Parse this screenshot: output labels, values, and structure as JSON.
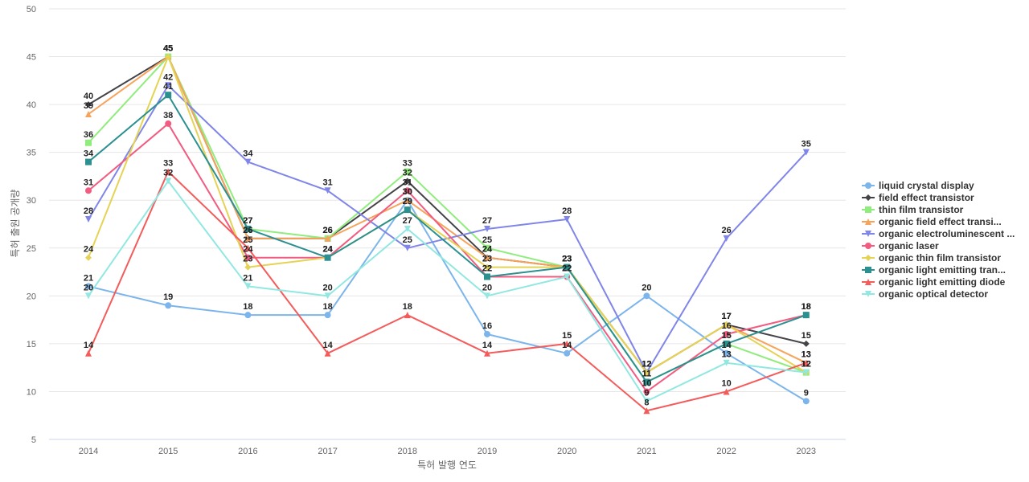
{
  "chart_data": {
    "type": "line",
    "xlabel": "특허 발행 연도",
    "ylabel": "특허 출원 공개량",
    "ylim": [
      5,
      50
    ],
    "yticks": [
      5,
      10,
      15,
      20,
      25,
      30,
      35,
      40,
      45,
      50
    ],
    "grid": true,
    "legend_position": "right",
    "categories": [
      "2014",
      "2015",
      "2016",
      "2017",
      "2018",
      "2019",
      "2020",
      "2021",
      "2022",
      "2023"
    ],
    "series": [
      {
        "name": "liquid crystal display",
        "legend_label": "liquid crystal display",
        "color": "#7cb5ec",
        "marker": "circle",
        "values": [
          21,
          19,
          18,
          18,
          30,
          16,
          14,
          20,
          14,
          9
        ]
      },
      {
        "name": "field effect transistor",
        "legend_label": "field effect transistor",
        "color": "#434348",
        "marker": "diamond",
        "values": [
          40,
          45,
          26,
          26,
          32,
          24,
          23,
          12,
          17,
          15
        ]
      },
      {
        "name": "thin film transistor",
        "legend_label": "thin film transistor",
        "color": "#90ed7d",
        "marker": "square",
        "values": [
          36,
          45,
          27,
          26,
          33,
          25,
          23,
          11,
          15,
          12
        ]
      },
      {
        "name": "organic field effect transistor",
        "legend_label": "organic field effect transi...",
        "color": "#f7a35c",
        "marker": "triangle",
        "values": [
          39,
          45,
          26,
          26,
          30,
          24,
          23,
          12,
          17,
          13
        ]
      },
      {
        "name": "organic electroluminescent",
        "legend_label": "organic electroluminescent ...",
        "color": "#8085e9",
        "marker": "triangle-down",
        "values": [
          28,
          42,
          34,
          31,
          25,
          27,
          28,
          12,
          26,
          35
        ]
      },
      {
        "name": "organic laser",
        "legend_label": "organic laser",
        "color": "#f15c80",
        "marker": "circle",
        "values": [
          31,
          38,
          24,
          24,
          31,
          22,
          22,
          10,
          16,
          18
        ]
      },
      {
        "name": "organic thin film transistor",
        "legend_label": "organic thin film transistor",
        "color": "#e4d354",
        "marker": "diamond",
        "values": [
          24,
          45,
          23,
          24,
          29,
          23,
          23,
          12,
          17,
          12
        ]
      },
      {
        "name": "organic light emitting transistor",
        "legend_label": "organic light emitting tran...",
        "color": "#2b908f",
        "marker": "square",
        "values": [
          34,
          41,
          27,
          24,
          29,
          22,
          23,
          11,
          15,
          18
        ]
      },
      {
        "name": "organic light emitting diode",
        "legend_label": "organic light emitting diode",
        "color": "#f45b5b",
        "marker": "triangle",
        "values": [
          14,
          33,
          25,
          14,
          18,
          14,
          15,
          8,
          10,
          13
        ]
      },
      {
        "name": "organic optical detector",
        "legend_label": "organic optical detector",
        "color": "#91e8e1",
        "marker": "triangle-down",
        "values": [
          20,
          32,
          21,
          20,
          27,
          20,
          22,
          9,
          13,
          12
        ]
      }
    ]
  }
}
